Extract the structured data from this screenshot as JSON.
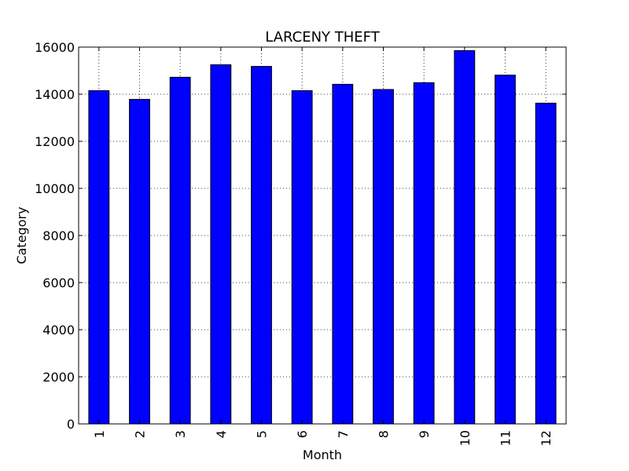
{
  "chart_data": {
    "type": "bar",
    "title": "LARCENY THEFT",
    "xlabel": "Month",
    "ylabel": "Category",
    "categories": [
      "1",
      "2",
      "3",
      "4",
      "5",
      "6",
      "7",
      "8",
      "9",
      "10",
      "11",
      "12"
    ],
    "values": [
      14150,
      13780,
      14720,
      15250,
      15180,
      14150,
      14420,
      14200,
      14490,
      15850,
      14810,
      13620
    ],
    "ylim": [
      0,
      16000
    ],
    "yticks": [
      0,
      2000,
      4000,
      6000,
      8000,
      10000,
      12000,
      14000,
      16000
    ],
    "grid": true,
    "bar_color": "#0000ff"
  }
}
